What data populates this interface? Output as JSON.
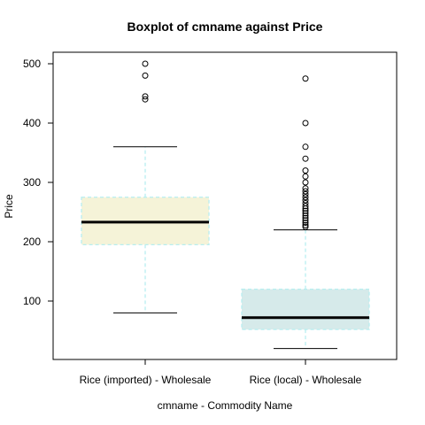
{
  "chart_data": {
    "type": "boxplot",
    "title": "Boxplot of cmname against Price",
    "xlabel": "cmname - Commodity Name",
    "ylabel": "Price",
    "ylim": [
      0,
      520
    ],
    "yticks": [
      100,
      200,
      300,
      400,
      500
    ],
    "categories": [
      "Rice (imported) - Wholesale",
      "Rice (local) - Wholesale"
    ],
    "boxes": [
      {
        "category": "Rice (imported) - Wholesale",
        "whisker_low": 80,
        "q1": 195,
        "median": 233,
        "q3": 275,
        "whisker_high": 360,
        "outliers": [
          440,
          445,
          480,
          500
        ],
        "fill": "#f5f3d8",
        "border": "#b8eef0"
      },
      {
        "category": "Rice (local) - Wholesale",
        "whisker_low": 20,
        "q1": 52,
        "median": 72,
        "q3": 120,
        "whisker_high": 220,
        "outliers": [
          225,
          228,
          232,
          236,
          240,
          244,
          248,
          252,
          256,
          260,
          265,
          270,
          275,
          280,
          285,
          290,
          300,
          310,
          320,
          340,
          360,
          400,
          475
        ],
        "fill": "#d6eaea",
        "border": "#b8eef0"
      }
    ],
    "grid": false,
    "legend": "none"
  }
}
